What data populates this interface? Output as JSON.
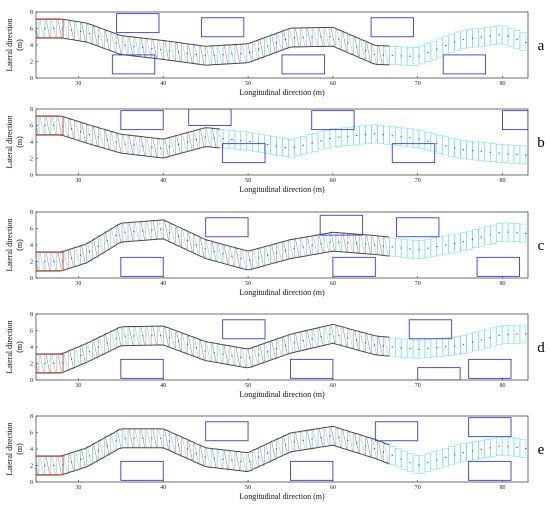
{
  "colors": {
    "obstacle": "#3b3bd6",
    "track_cyan": "#27d6e6",
    "track_red": "#e0473a",
    "track_pink": "#f08aa0",
    "track_dark": "#5a3a2a",
    "path_points": "#2f7a2f"
  },
  "axes": {
    "xlabel": "Longitudinal direction (m)",
    "ylabel_line1": "Lateral direction",
    "ylabel_line2": "(m)",
    "xticks": [
      "30",
      "40",
      "50",
      "60",
      "70",
      "80"
    ],
    "yticks": [
      "0",
      "2",
      "4",
      "6",
      "8"
    ]
  },
  "chart_data": [
    {
      "panel": "a",
      "type": "line",
      "xlabel": "Longitudinal direction (m)",
      "ylabel": "Lateral direction (m)",
      "xlim": [
        25,
        83
      ],
      "ylim": [
        0,
        8
      ],
      "reference_path": {
        "x": [
          25,
          28,
          31,
          35,
          40,
          45,
          50,
          55,
          60,
          65,
          70,
          75,
          80,
          83
        ],
        "y": [
          6.0,
          6.0,
          5.5,
          4.0,
          3.4,
          2.7,
          3.0,
          4.9,
          5.0,
          2.8,
          2.6,
          4.6,
          5.3,
          4.2
        ]
      },
      "obstacles": [
        {
          "x": [
            34.5,
            39.5
          ],
          "y": [
            5.5,
            7.8
          ]
        },
        {
          "x": [
            34,
            39
          ],
          "y": [
            0.5,
            2.8
          ]
        },
        {
          "x": [
            44.5,
            49.5
          ],
          "y": [
            5.0,
            7.3
          ]
        },
        {
          "x": [
            54,
            59
          ],
          "y": [
            0.5,
            2.8
          ]
        },
        {
          "x": [
            64.5,
            69.5
          ],
          "y": [
            5.0,
            7.3
          ]
        },
        {
          "x": [
            73,
            78
          ],
          "y": [
            0.5,
            2.8
          ]
        }
      ]
    },
    {
      "panel": "b",
      "type": "line",
      "xlabel": "Longitudinal direction (m)",
      "ylabel": "Lateral direction (m)",
      "xlim": [
        25,
        83
      ],
      "ylim": [
        0,
        8
      ],
      "reference_path": {
        "x": [
          25,
          28,
          31,
          35,
          40,
          45,
          50,
          55,
          60,
          65,
          70,
          75,
          80,
          83
        ],
        "y": [
          6.0,
          6.0,
          5.0,
          3.8,
          3.2,
          4.6,
          4.1,
          3.2,
          4.5,
          5.0,
          4.4,
          3.1,
          2.6,
          2.4
        ]
      },
      "obstacles": [
        {
          "x": [
            35,
            40
          ],
          "y": [
            5.5,
            7.8
          ]
        },
        {
          "x": [
            43,
            48
          ],
          "y": [
            6.0,
            8.0
          ]
        },
        {
          "x": [
            47,
            52
          ],
          "y": [
            1.5,
            3.8
          ]
        },
        {
          "x": [
            57.5,
            62.5
          ],
          "y": [
            5.5,
            7.8
          ]
        },
        {
          "x": [
            67,
            72
          ],
          "y": [
            1.5,
            3.8
          ]
        },
        {
          "x": [
            80,
            83
          ],
          "y": [
            5.5,
            7.8
          ]
        }
      ]
    },
    {
      "panel": "c",
      "type": "line",
      "xlabel": "Longitudinal direction (m)",
      "ylabel": "Lateral direction (m)",
      "xlim": [
        25,
        83
      ],
      "ylim": [
        0,
        8
      ],
      "reference_path": {
        "x": [
          25,
          28,
          31,
          35,
          40,
          45,
          50,
          55,
          60,
          65,
          70,
          75,
          80,
          83
        ],
        "y": [
          2.0,
          2.0,
          3.0,
          5.5,
          5.9,
          3.5,
          2.1,
          3.5,
          4.4,
          4.0,
          3.4,
          4.3,
          5.6,
          5.4
        ]
      },
      "obstacles": [
        {
          "x": [
            35,
            40
          ],
          "y": [
            0.2,
            2.5
          ]
        },
        {
          "x": [
            45,
            50
          ],
          "y": [
            5.0,
            7.3
          ]
        },
        {
          "x": [
            58.5,
            63.5
          ],
          "y": [
            5.2,
            7.6
          ]
        },
        {
          "x": [
            60,
            65
          ],
          "y": [
            0.2,
            2.5
          ]
        },
        {
          "x": [
            67.5,
            72.5
          ],
          "y": [
            5.0,
            7.3
          ]
        },
        {
          "x": [
            77,
            82
          ],
          "y": [
            0.2,
            2.5
          ]
        }
      ]
    },
    {
      "panel": "d",
      "type": "line",
      "xlabel": "Longitudinal direction (m)",
      "ylabel": "Lateral direction (m)",
      "xlim": [
        25,
        83
      ],
      "ylim": [
        0,
        8
      ],
      "reference_path": {
        "x": [
          25,
          28,
          31,
          35,
          40,
          45,
          50,
          55,
          60,
          65,
          70,
          75,
          80,
          83
        ],
        "y": [
          2.0,
          2.0,
          3.3,
          5.3,
          5.4,
          3.5,
          2.6,
          4.4,
          5.6,
          4.2,
          3.7,
          4.2,
          5.5,
          5.6
        ]
      },
      "obstacles": [
        {
          "x": [
            35,
            40
          ],
          "y": [
            0.2,
            2.5
          ]
        },
        {
          "x": [
            47,
            52
          ],
          "y": [
            5.0,
            7.3
          ]
        },
        {
          "x": [
            55,
            60
          ],
          "y": [
            0.2,
            2.5
          ]
        },
        {
          "x": [
            69,
            74
          ],
          "y": [
            5.0,
            7.3
          ]
        },
        {
          "x": [
            70,
            75
          ],
          "y": [
            0.0,
            1.5
          ]
        },
        {
          "x": [
            76,
            81
          ],
          "y": [
            0.2,
            2.5
          ]
        }
      ]
    },
    {
      "panel": "e",
      "type": "line",
      "xlabel": "Longitudinal direction (m)",
      "ylabel": "Lateral direction (m)",
      "xlim": [
        25,
        83
      ],
      "ylim": [
        0,
        8
      ],
      "reference_path": {
        "x": [
          25,
          28,
          31,
          35,
          40,
          45,
          50,
          55,
          60,
          65,
          70,
          75,
          80,
          83
        ],
        "y": [
          2.0,
          2.0,
          3.0,
          5.3,
          5.3,
          3.0,
          2.4,
          4.8,
          5.6,
          4.0,
          2.0,
          3.5,
          4.4,
          4.0
        ]
      },
      "obstacles": [
        {
          "x": [
            35,
            40
          ],
          "y": [
            0.2,
            2.5
          ]
        },
        {
          "x": [
            45,
            50
          ],
          "y": [
            5.0,
            7.3
          ]
        },
        {
          "x": [
            55,
            60
          ],
          "y": [
            0.2,
            2.5
          ]
        },
        {
          "x": [
            65,
            70
          ],
          "y": [
            5.0,
            7.3
          ]
        },
        {
          "x": [
            76,
            81
          ],
          "y": [
            5.5,
            7.8
          ]
        },
        {
          "x": [
            76,
            81
          ],
          "y": [
            0.2,
            2.5
          ]
        }
      ]
    }
  ]
}
